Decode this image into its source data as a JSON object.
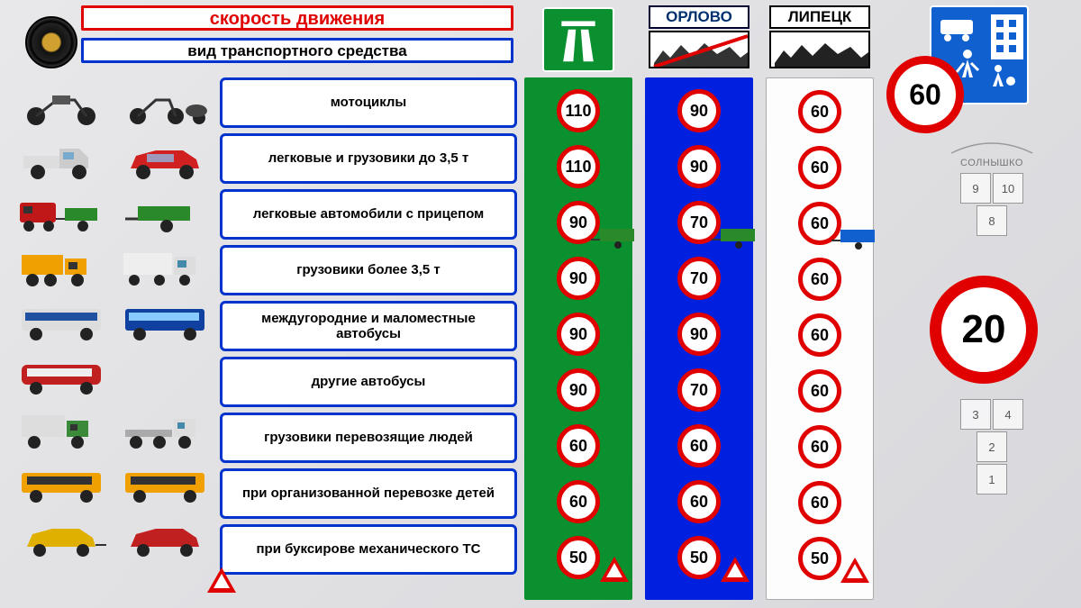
{
  "title": "скорость движения",
  "subtitle": "вид транспортного средства",
  "columns": {
    "motorway": {
      "bg": "#0b9030"
    },
    "out_town": {
      "label": "ОРЛОВО",
      "bg": "#0020e0"
    },
    "in_town": {
      "label": "ЛИПЕЦК",
      "bg": "#fdfdfd"
    }
  },
  "categories": [
    {
      "label": "мотоциклы",
      "speeds": [
        110,
        90,
        60
      ]
    },
    {
      "label": "легковые и грузовики до 3,5 т",
      "speeds": [
        110,
        90,
        60
      ]
    },
    {
      "label": "легковые автомобили с прицепом",
      "speeds": [
        90,
        70,
        60
      ]
    },
    {
      "label": "грузовики более 3,5 т",
      "speeds": [
        90,
        70,
        60
      ]
    },
    {
      "label": "междугородние и маломестные автобусы",
      "speeds": [
        90,
        90,
        60
      ]
    },
    {
      "label": "другие автобусы",
      "speeds": [
        90,
        70,
        60
      ]
    },
    {
      "label": "грузовики перевозящие людей",
      "speeds": [
        60,
        60,
        60
      ]
    },
    {
      "label": "при организованной перевозке детей",
      "speeds": [
        60,
        60,
        60
      ]
    },
    {
      "label": "при буксирове механического  ТС",
      "speeds": [
        50,
        50,
        50
      ]
    }
  ],
  "residential": {
    "big_sign_1": 60,
    "small_sign": 60,
    "big_sign_2": 20
  },
  "hopscotch": {
    "label": "СОЛНЫШКО",
    "cells": [
      [
        9,
        10
      ],
      [
        8
      ],
      [
        3,
        4
      ],
      [
        2
      ],
      [
        1
      ]
    ]
  },
  "style": {
    "sign_border": "#e00000",
    "cat_border": "#0033cc",
    "title_border": "#e00000",
    "title_color": "#e00000",
    "sign_text": "#000000",
    "sign_bg": "#ffffff",
    "sign_fontsize": 18,
    "cat_fontsize": 15
  }
}
